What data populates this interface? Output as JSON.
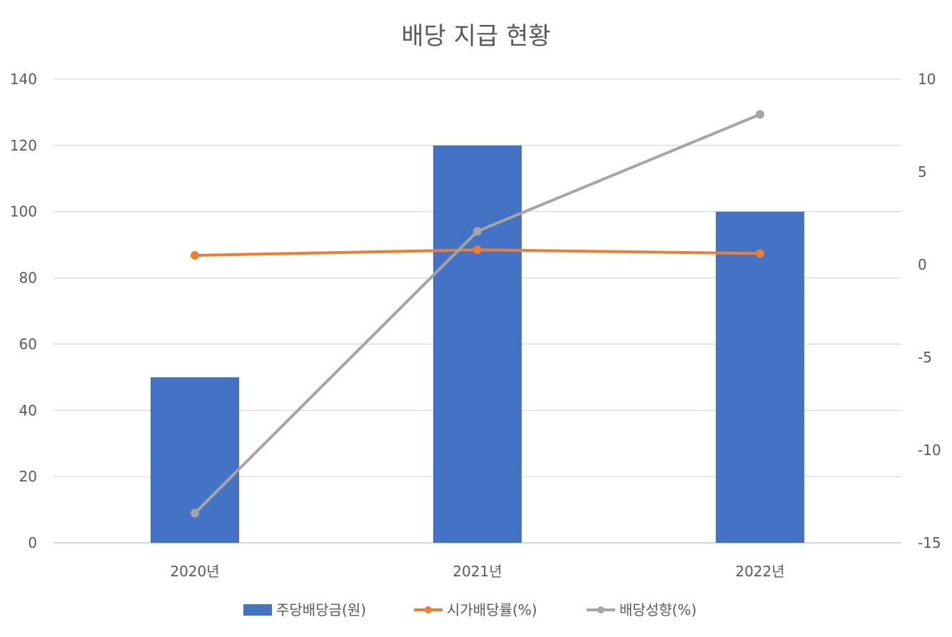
{
  "chart_data": {
    "type": "bar",
    "title": "배당 지급 현황",
    "categories": [
      "2020년",
      "2021년",
      "2022년"
    ],
    "y_left": {
      "min": 0,
      "max": 140,
      "step": 20,
      "ticks": [
        "0",
        "20",
        "40",
        "60",
        "80",
        "100",
        "120",
        "140"
      ]
    },
    "y_right": {
      "min": -15,
      "max": 10,
      "step": 5,
      "ticks": [
        "-15",
        "-10",
        "-5",
        "0",
        "5",
        "10"
      ]
    },
    "grid": true,
    "legend_position": "bottom",
    "series": [
      {
        "name": "주당배당금(원)",
        "type": "bar",
        "axis": "left",
        "color": "#4472C4",
        "values": [
          50,
          120,
          100
        ]
      },
      {
        "name": "시가배당률(%)",
        "type": "line",
        "axis": "right",
        "color": "#ED7D31",
        "values": [
          0.5,
          0.8,
          0.6
        ]
      },
      {
        "name": "배당성향(%)",
        "type": "line",
        "axis": "right",
        "color": "#A5A5A5",
        "values": [
          -13.4,
          1.8,
          8.1
        ]
      }
    ]
  }
}
